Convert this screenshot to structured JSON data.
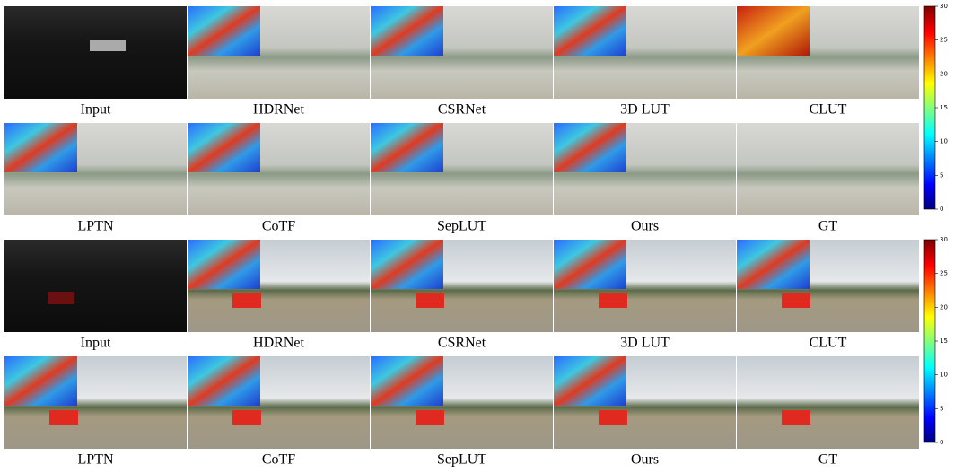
{
  "groups": [
    {
      "panels": [
        "Input",
        "HDRNet",
        "CSRNet",
        "3D LUT",
        "CLUT",
        "LPTN",
        "CoTF",
        "SepLUT",
        "Ours",
        "GT"
      ],
      "colorbar": {
        "ticks": [
          0,
          5,
          10,
          15,
          20,
          25,
          30
        ]
      }
    },
    {
      "panels": [
        "Input",
        "HDRNet",
        "CSRNet",
        "3D LUT",
        "CLUT",
        "LPTN",
        "CoTF",
        "SepLUT",
        "Ours",
        "GT"
      ],
      "colorbar": {
        "ticks": [
          0,
          5,
          10,
          15,
          20,
          25,
          30
        ]
      }
    }
  ]
}
